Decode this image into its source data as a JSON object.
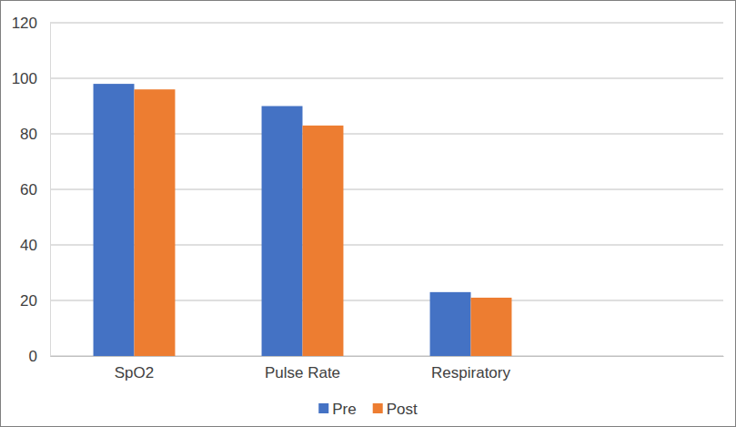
{
  "chart_data": {
    "type": "bar",
    "categories": [
      "SpO2",
      "Pulse Rate",
      "Respiratory",
      null
    ],
    "series": [
      {
        "name": "Pre",
        "color": "#4472c4",
        "values": [
          98,
          90,
          23,
          null
        ]
      },
      {
        "name": "Post",
        "color": "#ed7d31",
        "values": [
          96,
          83,
          21,
          null
        ]
      }
    ],
    "ylim": [
      0,
      120
    ],
    "yticks": [
      0,
      20,
      40,
      60,
      80,
      100,
      120
    ],
    "grid": true,
    "legend": "bottom"
  }
}
